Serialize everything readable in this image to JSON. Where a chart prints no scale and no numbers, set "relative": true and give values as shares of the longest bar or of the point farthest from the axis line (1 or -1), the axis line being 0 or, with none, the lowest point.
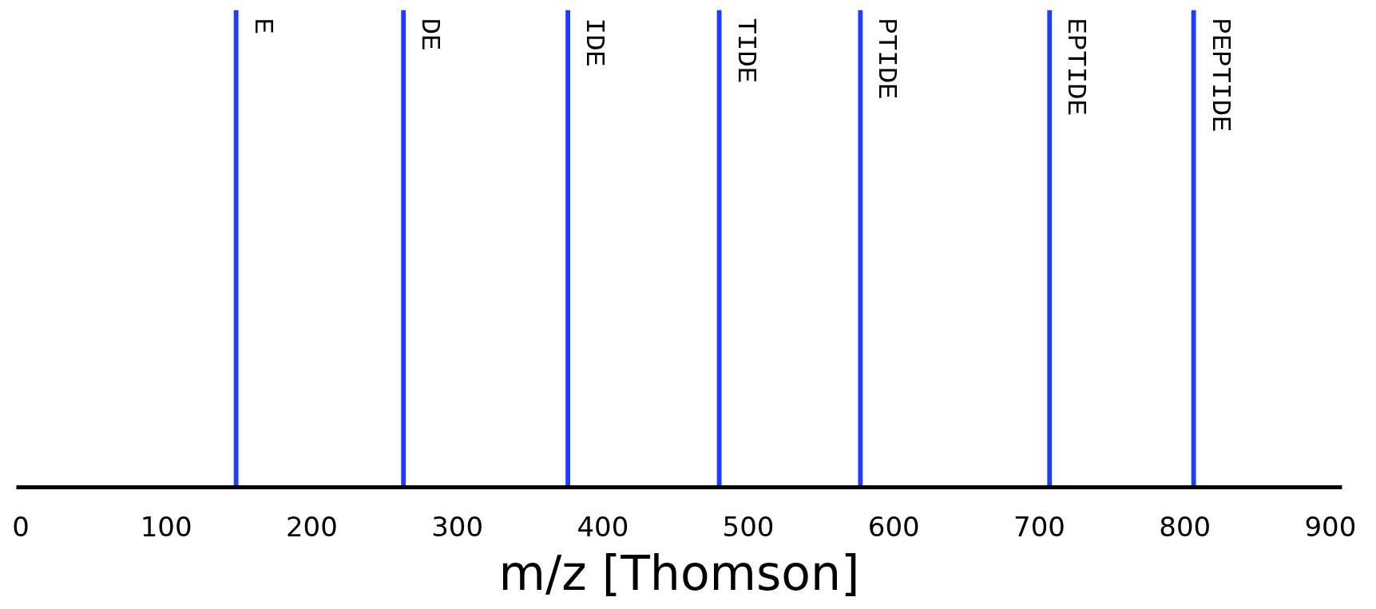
{
  "chart_data": {
    "type": "bar",
    "relative": true,
    "xlabel": "m/z [Thomson]",
    "x": [
      148,
      263,
      376,
      480,
      577,
      707,
      806
    ],
    "values": [
      1,
      1,
      1,
      1,
      1,
      1,
      1
    ],
    "color": "#1f3dff",
    "xlim": [
      -3,
      908
    ],
    "xticks": [
      0,
      100,
      200,
      300,
      400,
      500,
      600,
      700,
      800,
      900
    ],
    "grid": false,
    "annotations": [
      {
        "text": "E",
        "x": 148,
        "y": 1
      },
      {
        "text": "DE",
        "x": 263,
        "y": 1
      },
      {
        "text": "IDE",
        "x": 376,
        "y": 1
      },
      {
        "text": "TIDE",
        "x": 480,
        "y": 1
      },
      {
        "text": "PTIDE",
        "x": 577,
        "y": 1
      },
      {
        "text": "EPTIDE",
        "x": 707,
        "y": 1
      },
      {
        "text": "PEPTIDE",
        "x": 806,
        "y": 1
      }
    ]
  }
}
